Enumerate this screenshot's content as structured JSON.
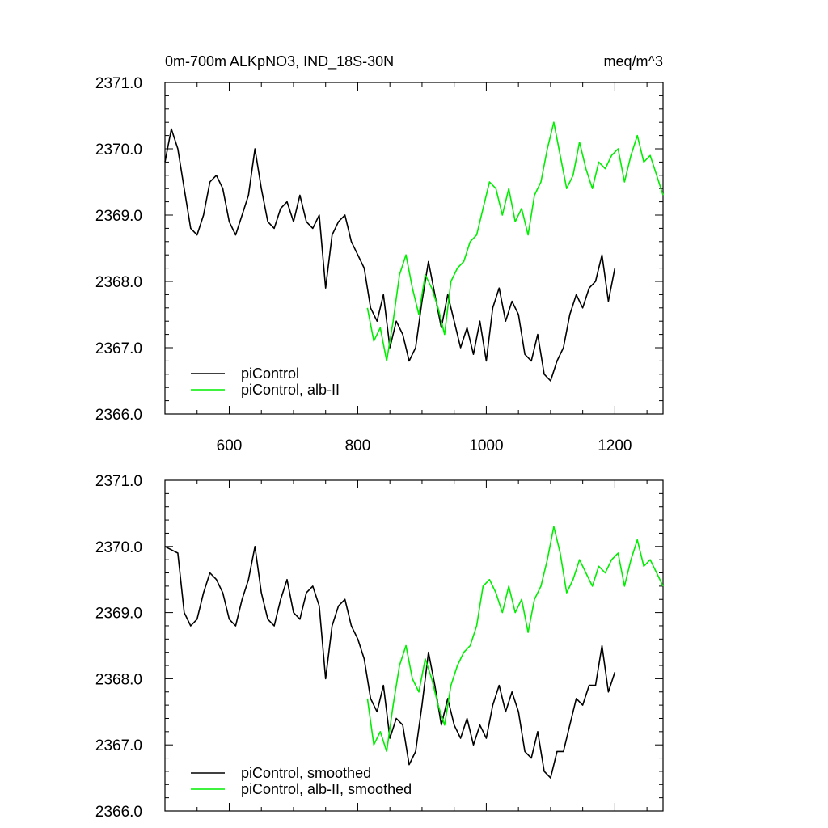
{
  "figure": {
    "title_left": "0m-700m ALKpNO3, IND_18S-30N",
    "title_right": "meq/m^3"
  },
  "chart_data": [
    {
      "type": "line",
      "panel": "top",
      "xlim": [
        500,
        1275
      ],
      "ylim": [
        2366.0,
        2371.0
      ],
      "x_ticks": [
        600,
        800,
        1000,
        1200
      ],
      "x_tick_labels": [
        "600",
        "800",
        "1000",
        "1200"
      ],
      "y_ticks": [
        2366.0,
        2367.0,
        2368.0,
        2369.0,
        2370.0,
        2371.0
      ],
      "y_tick_labels": [
        "2366.0",
        "2367.0",
        "2368.0",
        "2369.0",
        "2370.0",
        "2371.0"
      ],
      "legend_position": "bottom-left",
      "series": [
        {
          "name": "piControl",
          "color": "#000000",
          "x": [
            500,
            510,
            520,
            530,
            540,
            550,
            560,
            570,
            580,
            590,
            600,
            610,
            620,
            630,
            640,
            650,
            660,
            670,
            680,
            690,
            700,
            710,
            720,
            730,
            740,
            750,
            760,
            770,
            780,
            790,
            800,
            810,
            820,
            830,
            840,
            850,
            860,
            870,
            880,
            890,
            900,
            910,
            920,
            930,
            940,
            950,
            960,
            970,
            980,
            990,
            1000,
            1010,
            1020,
            1030,
            1040,
            1050,
            1060,
            1070,
            1080,
            1090,
            1100,
            1110,
            1120,
            1130,
            1140,
            1150,
            1160,
            1170,
            1180,
            1190,
            1200
          ],
          "y": [
            2369.8,
            2370.3,
            2370.0,
            2369.4,
            2368.8,
            2368.7,
            2369.0,
            2369.5,
            2369.6,
            2369.4,
            2368.9,
            2368.7,
            2369.0,
            2369.3,
            2370.0,
            2369.4,
            2368.9,
            2368.8,
            2369.1,
            2369.2,
            2368.9,
            2369.3,
            2368.9,
            2368.8,
            2369.0,
            2367.9,
            2368.7,
            2368.9,
            2369.0,
            2368.6,
            2368.4,
            2368.2,
            2367.6,
            2367.4,
            2367.8,
            2367.0,
            2367.4,
            2367.2,
            2366.8,
            2367.0,
            2367.7,
            2368.3,
            2367.8,
            2367.3,
            2367.8,
            2367.4,
            2367.0,
            2367.3,
            2366.9,
            2367.4,
            2366.8,
            2367.6,
            2367.9,
            2367.4,
            2367.7,
            2367.5,
            2366.9,
            2366.8,
            2367.2,
            2366.6,
            2366.5,
            2366.8,
            2367.0,
            2367.5,
            2367.8,
            2367.6,
            2367.9,
            2368.0,
            2368.4,
            2367.7,
            2368.2
          ]
        },
        {
          "name": "piControl, alb-II",
          "color": "#00ee00",
          "x": [
            815,
            825,
            835,
            845,
            855,
            865,
            875,
            885,
            895,
            905,
            915,
            925,
            935,
            945,
            955,
            965,
            975,
            985,
            995,
            1005,
            1015,
            1025,
            1035,
            1045,
            1055,
            1065,
            1075,
            1085,
            1095,
            1105,
            1115,
            1125,
            1135,
            1145,
            1155,
            1165,
            1175,
            1185,
            1195,
            1205,
            1215,
            1225,
            1235,
            1245,
            1255,
            1265,
            1275
          ],
          "y": [
            2367.6,
            2367.1,
            2367.3,
            2366.8,
            2367.4,
            2368.1,
            2368.4,
            2367.9,
            2367.5,
            2368.1,
            2367.9,
            2367.6,
            2367.2,
            2368.0,
            2368.2,
            2368.3,
            2368.6,
            2368.7,
            2369.1,
            2369.5,
            2369.4,
            2369.0,
            2369.4,
            2368.9,
            2369.1,
            2368.7,
            2369.3,
            2369.5,
            2370.0,
            2370.4,
            2369.9,
            2369.4,
            2369.6,
            2370.1,
            2369.7,
            2369.4,
            2369.8,
            2369.7,
            2369.9,
            2370.0,
            2369.5,
            2369.9,
            2370.2,
            2369.8,
            2369.9,
            2369.6,
            2369.3
          ]
        }
      ]
    },
    {
      "type": "line",
      "panel": "bottom",
      "xlim": [
        500,
        1275
      ],
      "ylim": [
        2366.0,
        2371.0
      ],
      "x_ticks": [
        600,
        800,
        1000,
        1200
      ],
      "x_tick_labels": [],
      "y_ticks": [
        2366.0,
        2367.0,
        2368.0,
        2369.0,
        2370.0,
        2371.0
      ],
      "y_tick_labels": [
        "2366.0",
        "2367.0",
        "2368.0",
        "2369.0",
        "2370.0",
        "2371.0"
      ],
      "legend_position": "bottom-left",
      "series": [
        {
          "name": "piControl, smoothed",
          "color": "#000000",
          "x": [
            500,
            510,
            520,
            530,
            540,
            550,
            560,
            570,
            580,
            590,
            600,
            610,
            620,
            630,
            640,
            650,
            660,
            670,
            680,
            690,
            700,
            710,
            720,
            730,
            740,
            750,
            760,
            770,
            780,
            790,
            800,
            810,
            820,
            830,
            840,
            850,
            860,
            870,
            880,
            890,
            900,
            910,
            920,
            930,
            940,
            950,
            960,
            970,
            980,
            990,
            1000,
            1010,
            1020,
            1030,
            1040,
            1050,
            1060,
            1070,
            1080,
            1090,
            1100,
            1110,
            1120,
            1130,
            1140,
            1150,
            1160,
            1170,
            1180,
            1190,
            1200
          ],
          "y": [
            2370.0,
            2369.95,
            2369.9,
            2369.0,
            2368.8,
            2368.9,
            2369.3,
            2369.6,
            2369.5,
            2369.3,
            2368.9,
            2368.8,
            2369.2,
            2369.5,
            2370.0,
            2369.3,
            2368.9,
            2368.8,
            2369.2,
            2369.5,
            2369.0,
            2368.9,
            2369.3,
            2369.4,
            2369.1,
            2368.0,
            2368.8,
            2369.1,
            2369.2,
            2368.8,
            2368.6,
            2368.3,
            2367.7,
            2367.5,
            2367.9,
            2367.1,
            2367.4,
            2367.3,
            2366.7,
            2366.9,
            2367.6,
            2368.4,
            2367.9,
            2367.3,
            2367.7,
            2367.3,
            2367.1,
            2367.4,
            2367.0,
            2367.3,
            2367.1,
            2367.6,
            2367.9,
            2367.5,
            2367.8,
            2367.5,
            2366.9,
            2366.8,
            2367.2,
            2366.6,
            2366.5,
            2366.9,
            2366.9,
            2367.3,
            2367.7,
            2367.6,
            2367.9,
            2367.9,
            2368.5,
            2367.8,
            2368.1
          ]
        },
        {
          "name": "piControl, alb-II, smoothed",
          "color": "#00ee00",
          "x": [
            815,
            825,
            835,
            845,
            855,
            865,
            875,
            885,
            895,
            905,
            915,
            925,
            935,
            945,
            955,
            965,
            975,
            985,
            995,
            1005,
            1015,
            1025,
            1035,
            1045,
            1055,
            1065,
            1075,
            1085,
            1095,
            1105,
            1115,
            1125,
            1135,
            1145,
            1155,
            1165,
            1175,
            1185,
            1195,
            1205,
            1215,
            1225,
            1235,
            1245,
            1255,
            1265,
            1275
          ],
          "y": [
            2367.7,
            2367.0,
            2367.2,
            2366.9,
            2367.6,
            2368.2,
            2368.5,
            2368.0,
            2367.8,
            2368.3,
            2368.0,
            2367.6,
            2367.3,
            2367.9,
            2368.2,
            2368.4,
            2368.5,
            2368.8,
            2369.4,
            2369.5,
            2369.3,
            2369.0,
            2369.4,
            2369.0,
            2369.2,
            2368.7,
            2369.2,
            2369.4,
            2369.8,
            2370.3,
            2369.9,
            2369.3,
            2369.5,
            2369.8,
            2369.6,
            2369.4,
            2369.7,
            2369.6,
            2369.8,
            2369.9,
            2369.4,
            2369.8,
            2370.1,
            2369.7,
            2369.8,
            2369.6,
            2369.4
          ]
        }
      ]
    }
  ]
}
